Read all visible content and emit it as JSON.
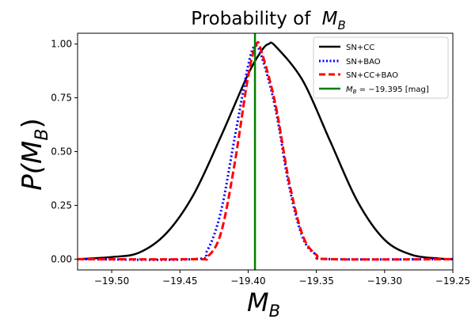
{
  "chart_data": {
    "type": "line",
    "title_text": "Probability of",
    "title_math": "M",
    "title_math_sub": "B",
    "xlabel_math": "M",
    "xlabel_math_sub": "B",
    "ylabel_math": "P(M",
    "ylabel_math_sub": "B",
    "ylabel_math_close": ")",
    "xlim": [
      -19.525,
      -19.25
    ],
    "ylim": [
      -0.05,
      1.05
    ],
    "xticks": [
      -19.5,
      -19.45,
      -19.4,
      -19.35,
      -19.3,
      -19.25
    ],
    "xtick_labels": [
      "−19.50",
      "−19.45",
      "−19.40",
      "−19.35",
      "−19.30",
      "−19.25"
    ],
    "yticks": [
      0.0,
      0.25,
      0.5,
      0.75,
      1.0
    ],
    "ytick_labels": [
      "0.00",
      "0.25",
      "0.50",
      "0.75",
      "1.00"
    ],
    "grid": false,
    "legend_position": "top-right",
    "series": [
      {
        "name": "SN+CC",
        "color": "#000000",
        "style": "solid",
        "x": [
          -19.525,
          -19.5,
          -19.48,
          -19.46,
          -19.44,
          -19.42,
          -19.4,
          -19.39,
          -19.385,
          -19.38,
          -19.36,
          -19.34,
          -19.32,
          -19.3,
          -19.28,
          -19.26,
          -19.25
        ],
        "y": [
          0.0,
          0.01,
          0.03,
          0.12,
          0.3,
          0.57,
          0.86,
          0.97,
          1.0,
          0.99,
          0.83,
          0.55,
          0.27,
          0.09,
          0.02,
          0.003,
          0.0
        ]
      },
      {
        "name": "SN+BAO",
        "color": "#0000ff",
        "style": "dotted",
        "x": [
          -19.525,
          -19.44,
          -19.43,
          -19.42,
          -19.41,
          -19.4,
          -19.395,
          -19.39,
          -19.38,
          -19.37,
          -19.36,
          -19.35,
          -19.34,
          -19.25
        ],
        "y": [
          0.0,
          0.0,
          0.04,
          0.22,
          0.56,
          0.9,
          0.99,
          0.94,
          0.7,
          0.34,
          0.1,
          0.02,
          0.0,
          0.0
        ]
      },
      {
        "name": "SN+CC+BAO",
        "color": "#ff0000",
        "style": "dashed",
        "x": [
          -19.525,
          -19.44,
          -19.43,
          -19.42,
          -19.41,
          -19.4,
          -19.394,
          -19.39,
          -19.38,
          -19.37,
          -19.36,
          -19.35,
          -19.34,
          -19.25
        ],
        "y": [
          0.0,
          0.0,
          0.01,
          0.12,
          0.44,
          0.85,
          1.0,
          0.96,
          0.72,
          0.36,
          0.11,
          0.02,
          0.0,
          0.0
        ]
      },
      {
        "name_math": "M",
        "name_math_sub": "B",
        "name_rest": " = −19.395 [mag]",
        "color": "#008000",
        "style": "vline",
        "x_value": -19.395
      }
    ]
  }
}
